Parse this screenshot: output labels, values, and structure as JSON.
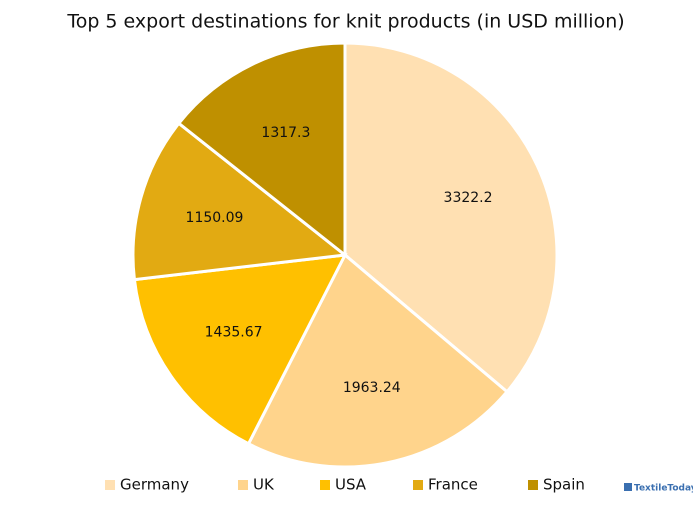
{
  "chart_data": {
    "type": "pie",
    "title": "Top 5 export destinations for knit products (in USD million)",
    "categories": [
      "Germany",
      "UK",
      "USA",
      "France",
      "Spain"
    ],
    "values": [
      3322.2,
      1963.24,
      1435.67,
      1150.09,
      1317.3
    ],
    "colors": [
      "#FFE0B2",
      "#FFD48C",
      "#FFC000",
      "#E2AA12",
      "#BF9000"
    ],
    "legend": "bottom",
    "watermark": "TextileToday"
  }
}
